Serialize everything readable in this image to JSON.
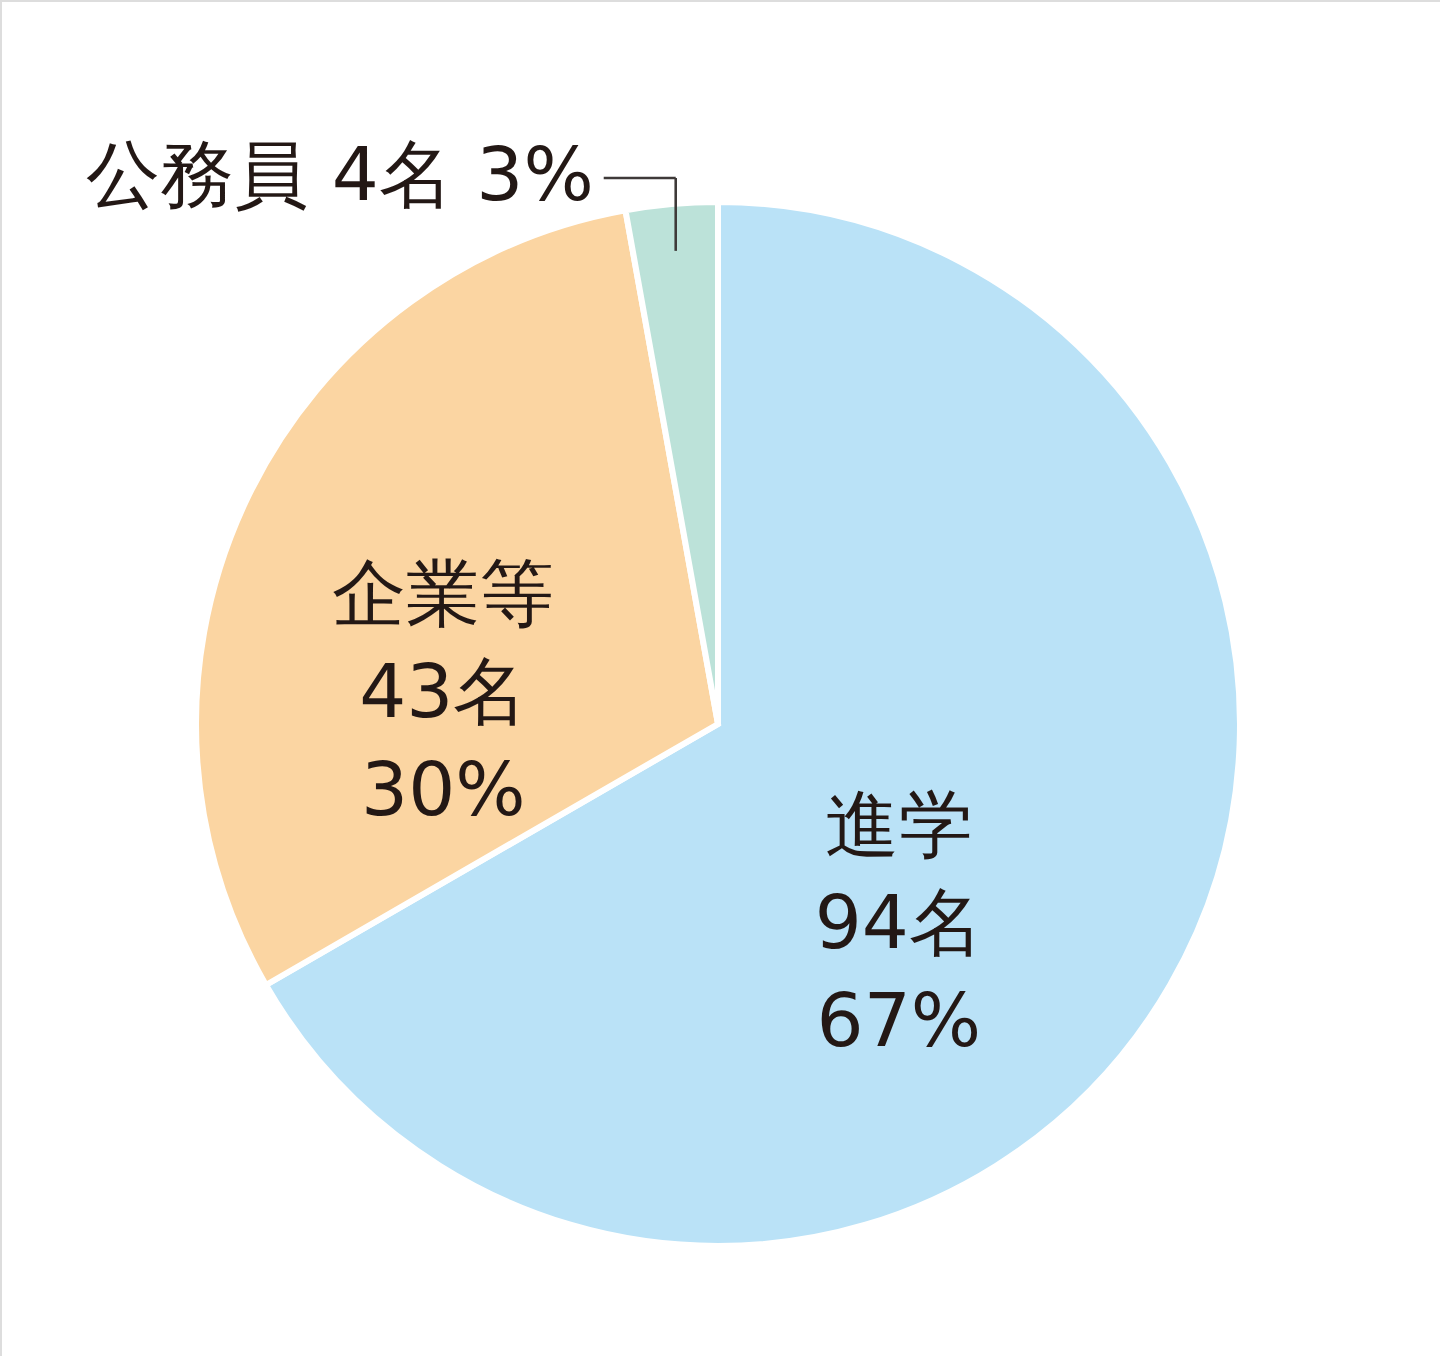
{
  "chart_data": {
    "type": "pie",
    "categories": [
      "進学",
      "企業等",
      "公務員"
    ],
    "values": [
      94,
      43,
      4
    ],
    "value_labels": [
      "94名 67%",
      "43名 30%",
      "4名 3%"
    ],
    "colors": [
      "#bae2f7",
      "#fbd5a2",
      "#bce2d9"
    ]
  }
}
